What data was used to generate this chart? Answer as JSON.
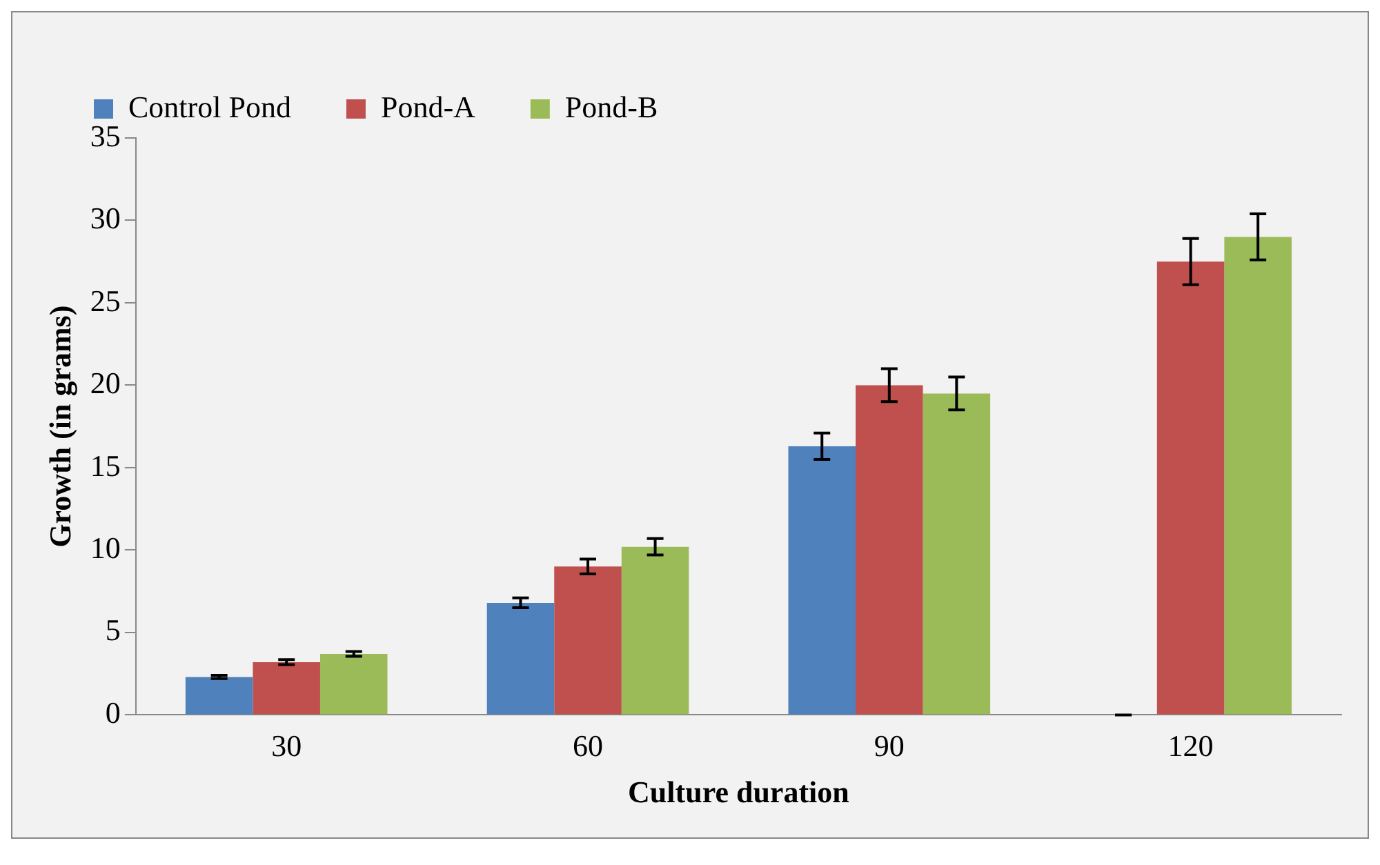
{
  "chart_data": {
    "type": "bar",
    "xlabel": "Culture duration",
    "ylabel": "Growth (in grams)",
    "categories": [
      "30",
      "60",
      "90",
      "120"
    ],
    "series": [
      {
        "name": "Control Pond",
        "color": "#4f81bd",
        "values": [
          2.3,
          6.8,
          16.3,
          0
        ],
        "errors": [
          0.1,
          0.3,
          0.8,
          0
        ]
      },
      {
        "name": "Pond-A",
        "color": "#c0504d",
        "values": [
          3.2,
          9.0,
          20.0,
          27.5
        ],
        "errors": [
          0.15,
          0.45,
          1.0,
          1.4
        ]
      },
      {
        "name": "Pond-B",
        "color": "#9bbb59",
        "values": [
          3.7,
          10.2,
          19.5,
          29.0
        ],
        "errors": [
          0.15,
          0.5,
          1.0,
          1.4
        ]
      }
    ],
    "ylim": [
      0,
      35
    ],
    "yticks": [
      0,
      5,
      10,
      15,
      20,
      25,
      30,
      35
    ],
    "grid": false,
    "legend": "top left"
  }
}
